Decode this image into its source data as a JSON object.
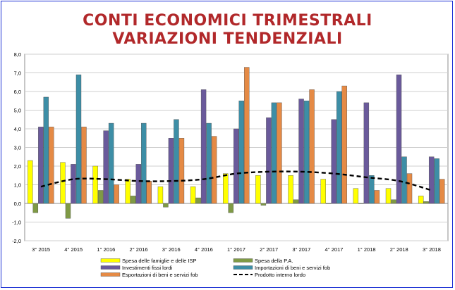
{
  "title_lines": [
    "CONTI ECONOMICI TRIMESTRALI",
    "VARIAZIONI TENDENZIALI"
  ],
  "colors": {
    "title": "#b1282a",
    "border": "#1a2fd4",
    "spesa_famiglie": "#ffff00",
    "spesa_pa": "#7f9a45",
    "investimenti": "#6a5a9b",
    "importazioni": "#3d8ea6",
    "esportazioni": "#e58a45",
    "pil": "#000000"
  },
  "chart_data": {
    "type": "bar",
    "title": "CONTI ECONOMICI TRIMESTRALI VARIAZIONI TENDENZIALI",
    "categories": [
      "3° 2015",
      "4° 2015",
      "1° 2016",
      "2° 2016",
      "3° 2016",
      "4° 2016",
      "1° 2017",
      "2° 2017",
      "3° 2017",
      "4° 2017",
      "1° 2018",
      "2° 2018",
      "3° 2018"
    ],
    "ylim": [
      -2.0,
      8.0
    ],
    "yticks": [
      "8,0",
      "7,0",
      "6,0",
      "5,0",
      "4,0",
      "3,0",
      "2,0",
      "1,0",
      "0,0",
      "-1,0",
      "-2,0"
    ],
    "grid": true,
    "legend_position": "bottom",
    "series": [
      {
        "name": "Spesa delle famiglie e delle ISP",
        "type": "bar",
        "color": "#ffff00",
        "values": [
          2.3,
          2.2,
          2.0,
          1.3,
          0.9,
          0.9,
          1.6,
          1.5,
          1.5,
          1.3,
          0.8,
          0.8,
          0.4
        ]
      },
      {
        "name": "Spesa della P.A.",
        "type": "bar",
        "color": "#7f9a45",
        "values": [
          -0.5,
          -0.8,
          0.7,
          0.4,
          -0.2,
          0.3,
          -0.5,
          -0.1,
          0.2,
          0.0,
          0.0,
          0.2,
          0.1
        ]
      },
      {
        "name": "Investimenti fissi lordi",
        "type": "bar",
        "color": "#6a5a9b",
        "values": [
          4.1,
          2.1,
          3.9,
          2.1,
          3.5,
          6.1,
          4.0,
          4.6,
          5.6,
          4.5,
          5.4,
          6.9,
          2.5
        ]
      },
      {
        "name": "Importazioni di beni e servizi fob",
        "type": "bar",
        "color": "#3d8ea6",
        "values": [
          5.7,
          6.9,
          4.3,
          4.3,
          4.5,
          4.3,
          5.5,
          5.4,
          5.5,
          6.0,
          1.5,
          2.5,
          2.4
        ]
      },
      {
        "name": "Esportazioni di beni e servizi fob",
        "type": "bar",
        "color": "#e58a45",
        "values": [
          4.1,
          4.1,
          1.0,
          1.2,
          3.5,
          3.6,
          7.3,
          5.4,
          6.1,
          6.3,
          0.7,
          1.6,
          1.3
        ]
      },
      {
        "name": "Prodotto interno lordo",
        "type": "line",
        "style": "dashed",
        "color": "#000000",
        "values": [
          0.9,
          1.3,
          1.3,
          1.2,
          1.2,
          1.3,
          1.6,
          1.7,
          1.7,
          1.6,
          1.4,
          1.2,
          0.7
        ]
      }
    ]
  }
}
